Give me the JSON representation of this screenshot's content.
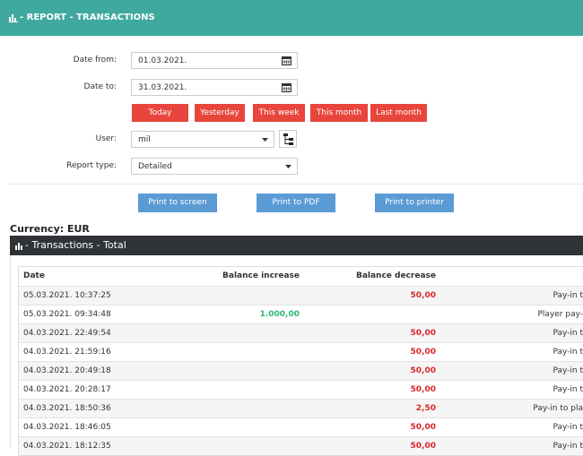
{
  "header": {
    "title": "- REPORT - TRANSACTIONS"
  },
  "form": {
    "date_from": {
      "label": "Date from:",
      "value": "01.03.2021."
    },
    "date_to": {
      "label": "Date to:",
      "value": "31.03.2021."
    },
    "quick_ranges": [
      "Today",
      "Yesterday",
      "This week",
      "This month",
      "Last month"
    ],
    "user": {
      "label": "User:",
      "value": "mil"
    },
    "report_type": {
      "label": "Report type:",
      "value": "Detailed"
    }
  },
  "print_buttons": [
    "Print to screen",
    "Print to PDF",
    "Print to printer"
  ],
  "currency": "Currency: EUR",
  "panel": {
    "title": "- Transactions - Total"
  },
  "table": {
    "columns": [
      "Date",
      "Balance increase",
      "Balance decrease"
    ],
    "rows": [
      {
        "date": "05.03.2021. 10:37:25",
        "decrease": "50,00",
        "description": "Pay-in t"
      },
      {
        "date": "05.03.2021. 09:34:48",
        "increase": "1.000,00",
        "description": "Player pay-"
      },
      {
        "date": "04.03.2021. 22:49:54",
        "decrease": "50,00",
        "description": "Pay-in t"
      },
      {
        "date": "04.03.2021. 21:59:16",
        "decrease": "50,00",
        "description": "Pay-in t"
      },
      {
        "date": "04.03.2021. 20:49:18",
        "decrease": "50,00",
        "description": "Pay-in t"
      },
      {
        "date": "04.03.2021. 20:28:17",
        "decrease": "50,00",
        "description": "Pay-in t"
      },
      {
        "date": "04.03.2021. 18:50:36",
        "decrease": "2,50",
        "description": "Pay-in to pla"
      },
      {
        "date": "04.03.2021. 18:46:05",
        "decrease": "50,00",
        "description": "Pay-in t"
      },
      {
        "date": "04.03.2021. 18:12:35",
        "decrease": "50,00",
        "description": "Pay-in t"
      }
    ]
  }
}
